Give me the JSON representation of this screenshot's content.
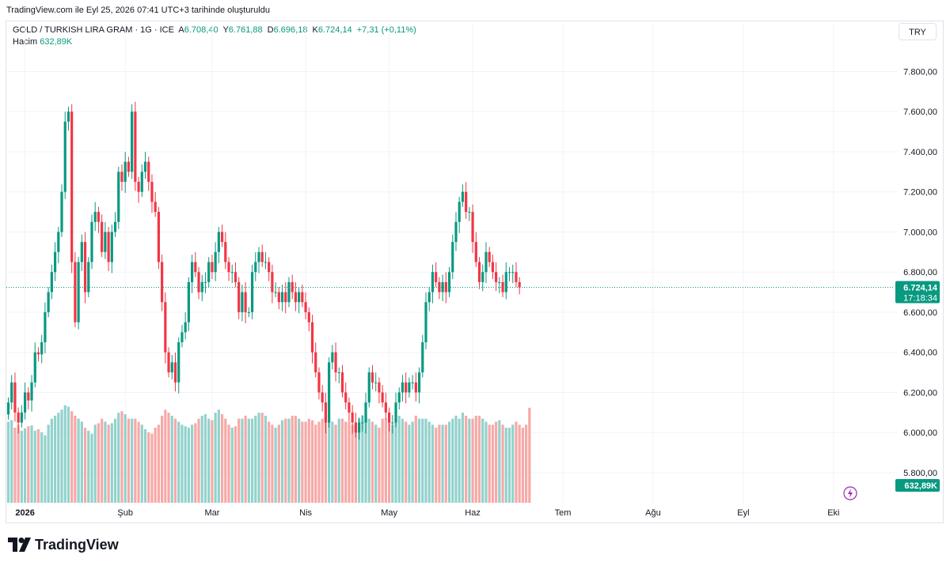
{
  "header": {
    "caption": "TradingView.com ile Eyl 25, 2026 07:41 UTC+3 tarihinde oluşturuldu"
  },
  "legend": {
    "symbol": "GOLD / TURKISH LIRA GRAM · 1G · ICE",
    "open_label": "A",
    "open_value": "6.708,40",
    "high_label": "Y",
    "high_value": "6.761,88",
    "low_label": "D",
    "low_value": "6.696,18",
    "close_label": "K",
    "close_value": "6.724,14",
    "change": "+7,31 (+0,11%)",
    "volume_label": "Hacim",
    "volume_value": "632,89K"
  },
  "currency_button": "TRY",
  "footer": {
    "brand": "TradingView"
  },
  "colors": {
    "up": "#089981",
    "down": "#f23645",
    "up_volume": "#92d2cc",
    "down_volume": "#f7a9a7",
    "grid": "#f0f3fa"
  },
  "chart_data": {
    "type": "candlestick",
    "title": "GOLD / TURKISH LIRA GRAM · 1G · ICE",
    "y_axis": {
      "range": [
        5650,
        7920
      ],
      "ticks": [
        "7.800,00",
        "7.600,00",
        "7.400,00",
        "7.200,00",
        "7.000,00",
        "6.800,00",
        "6.600,00",
        "6.400,00",
        "6.200,00",
        "6.000,00",
        "5.800,00"
      ],
      "tick_values": [
        7800,
        7600,
        7400,
        7200,
        7000,
        6800,
        6600,
        6400,
        6200,
        6000,
        5800
      ]
    },
    "x_axis": {
      "ticks": [
        "2026",
        "Şub",
        "Mar",
        "Nis",
        "May",
        "Haz",
        "Tem",
        "Ağu",
        "Eyl",
        "Eki"
      ],
      "tick_index": [
        5,
        35,
        61,
        89,
        114,
        139,
        166,
        193,
        220,
        247
      ]
    },
    "last_price": {
      "value": 6724.14,
      "label": "6.724,14",
      "countdown": "17:18:34"
    },
    "last_volume": {
      "label": "632,89K"
    },
    "grid": true,
    "series": [
      {
        "name": "Hacim",
        "type": "volume"
      }
    ],
    "close": [
      6150,
      6250,
      6100,
      6050,
      6100,
      6200,
      6160,
      6250,
      6400,
      6390,
      6450,
      6600,
      6700,
      6800,
      6900,
      7000,
      7200,
      7550,
      7600,
      6850,
      6550,
      6850,
      6950,
      6700,
      6850,
      7050,
      7100,
      7050,
      6900,
      7000,
      6850,
      7000,
      7050,
      7300,
      7250,
      7350,
      7300,
      7600,
      7250,
      7200,
      7300,
      7350,
      7250,
      7150,
      7100,
      6850,
      6650,
      6400,
      6300,
      6350,
      6250,
      6450,
      6500,
      6550,
      6750,
      6850,
      6800,
      6700,
      6750,
      6750,
      6850,
      6800,
      6900,
      7000,
      6950,
      6850,
      6800,
      6800,
      6750,
      6600,
      6700,
      6600,
      6600,
      6800,
      6850,
      6900,
      6850,
      6850,
      6800,
      6700,
      6700,
      6650,
      6700,
      6650,
      6750,
      6700,
      6650,
      6700,
      6650,
      6600,
      6550,
      6400,
      6300,
      6200,
      6150,
      6050,
      6350,
      6400,
      6300,
      6300,
      6200,
      6150,
      6100,
      6050,
      6000,
      6050,
      6050,
      6150,
      6300,
      6250,
      6250,
      6200,
      6150,
      6100,
      6050,
      6050,
      6150,
      6200,
      6250,
      6200,
      6250,
      6250,
      6200,
      6300,
      6450,
      6650,
      6700,
      6800,
      6750,
      6700,
      6750,
      6700,
      6800,
      6950,
      7050,
      7150,
      7200,
      7100,
      7100,
      6950,
      6850,
      6750,
      6800,
      6900,
      6850,
      6800,
      6750,
      6750,
      6700,
      6800,
      6800,
      6800,
      6750,
      6724
    ],
    "volume_k": [
      540,
      550,
      500,
      520,
      480,
      495,
      510,
      515,
      480,
      490,
      470,
      450,
      520,
      560,
      580,
      600,
      620,
      650,
      640,
      610,
      580,
      560,
      540,
      500,
      480,
      460,
      520,
      530,
      560,
      540,
      520,
      530,
      560,
      600,
      610,
      590,
      560,
      560,
      560,
      540,
      520,
      490,
      470,
      460,
      500,
      520,
      580,
      620,
      600,
      580,
      560,
      540,
      520,
      510,
      500,
      520,
      530,
      560,
      580,
      590,
      560,
      550,
      600,
      620,
      590,
      560,
      520,
      500,
      510,
      560,
      560,
      580,
      560,
      560,
      580,
      600,
      600,
      580,
      540,
      520,
      500,
      520,
      550,
      560,
      560,
      580,
      580,
      560,
      540,
      540,
      560,
      550,
      520,
      540,
      560,
      580,
      560,
      540,
      520,
      560,
      560,
      540,
      540,
      520,
      520,
      560,
      580,
      580,
      560,
      540,
      520,
      500,
      560,
      560,
      540,
      520,
      560,
      580,
      560,
      540,
      520,
      540,
      580,
      560,
      560,
      560,
      540,
      520,
      500,
      520,
      520,
      520,
      540,
      560,
      580,
      560,
      600,
      580,
      560,
      560,
      580,
      580,
      560,
      540,
      520,
      520,
      540,
      550,
      520,
      500,
      500,
      520,
      540,
      520,
      500,
      520,
      633
    ]
  }
}
